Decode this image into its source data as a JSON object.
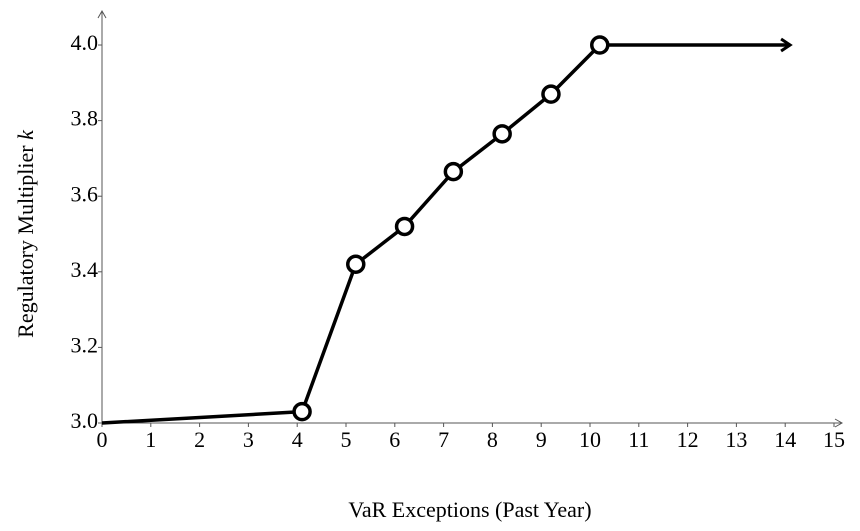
{
  "chart_data": {
    "type": "line",
    "xlabel": "VaR Exceptions (Past Year)",
    "ylabel": "Regulatory Multiplier",
    "ylabel_var": "k",
    "series": [
      {
        "color": "#000000",
        "x": [
          0,
          4.1,
          5.2,
          6.2,
          7.2,
          8.2,
          9.2,
          10.2,
          14.1
        ],
        "values": [
          3.0,
          3.03,
          3.42,
          3.52,
          3.665,
          3.765,
          3.87,
          4.0,
          4.0
        ]
      }
    ],
    "xlim": [
      0,
      15
    ],
    "ylim": [
      3.0,
      4.09
    ],
    "xticks": [
      0,
      1,
      2,
      3,
      4,
      5,
      6,
      7,
      8,
      9,
      10,
      11,
      12,
      13,
      14,
      15
    ],
    "yticks": [
      {
        "value": 3.0,
        "label": "3.0"
      },
      3.2,
      3.4,
      3.6,
      3.8,
      {
        "value": 4.0,
        "label": "4.0"
      }
    ],
    "grid": false
  }
}
